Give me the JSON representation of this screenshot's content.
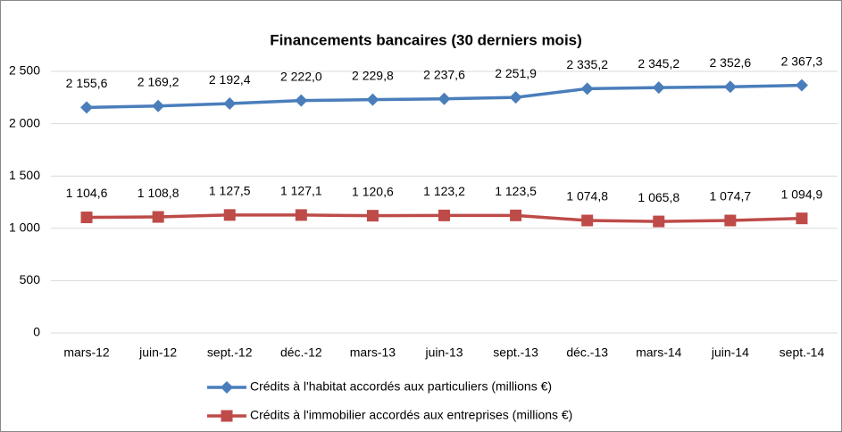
{
  "chart_data": {
    "type": "line",
    "title": "Financements bancaires (30 derniers mois)",
    "categories": [
      "mars-12",
      "juin-12",
      "sept.-12",
      "déc.-12",
      "mars-13",
      "juin-13",
      "sept.-13",
      "déc.-13",
      "mars-14",
      "juin-14",
      "sept.-14"
    ],
    "series": [
      {
        "name": "Crédits à l'habitat accordés aux particuliers (millions €)",
        "color": "#4a7ebb",
        "marker": "diamond",
        "values": [
          2155.6,
          2169.2,
          2192.4,
          2222.0,
          2229.8,
          2237.6,
          2251.9,
          2335.2,
          2345.2,
          2352.6,
          2367.3
        ],
        "value_labels": [
          "2 155,6",
          "2 169,2",
          "2 192,4",
          "2 222,0",
          "2 229,8",
          "2 237,6",
          "2 251,9",
          "2 335,2",
          "2 345,2",
          "2 352,6",
          "2 367,3"
        ]
      },
      {
        "name": "Crédits à l'immobilier  accordés aux entreprises (millions €)",
        "color": "#be4b48",
        "marker": "square",
        "values": [
          1104.6,
          1108.8,
          1127.5,
          1127.1,
          1120.6,
          1123.2,
          1123.5,
          1074.8,
          1065.8,
          1074.7,
          1094.9
        ],
        "value_labels": [
          "1 104,6",
          "1 108,8",
          "1 127,5",
          "1 127,1",
          "1 120,6",
          "1 123,2",
          "1 123,5",
          "1 074,8",
          "1 065,8",
          "1 074,7",
          "1 094,9"
        ]
      }
    ],
    "ylim": [
      0,
      2500
    ],
    "yticks": [
      0,
      500,
      {
        "value": 1000,
        "label": "1 000"
      },
      {
        "value": 1500,
        "label": "1 500"
      },
      {
        "value": 2000,
        "label": "2 000"
      },
      {
        "value": 2500,
        "label": "2 500"
      }
    ],
    "grid": true,
    "legend": "bottom"
  }
}
